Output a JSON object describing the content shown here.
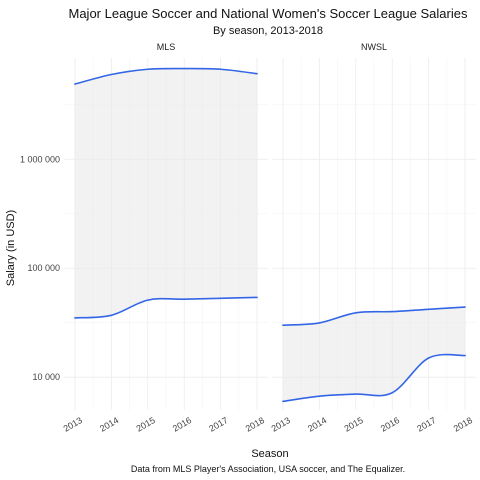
{
  "chart_data": {
    "type": "line",
    "title": "Major League Soccer and National Women's Soccer League Salaries",
    "subtitle": "By season, 2013-2018",
    "caption": "Data from MLS Player's Association, USA soccer, and The Equalizer.",
    "xlabel": "Season",
    "ylabel": "Salary (in USD)",
    "y_scale": "log",
    "ylim": [
      5000,
      8500000
    ],
    "y_ticks": [
      10000,
      100000,
      1000000
    ],
    "y_tick_labels": [
      "10 000",
      "100 000",
      "1 000 000"
    ],
    "x_ticks": [
      "2013",
      "2014",
      "2015",
      "2016",
      "2017",
      "2018"
    ],
    "grid": true,
    "ribbon": "shaded band between the lower and upper line of each panel",
    "line_color": "#3366e6",
    "panels": [
      {
        "name": "MLS",
        "x": [
          2013,
          2014,
          2015,
          2016,
          2017,
          2018
        ],
        "series": [
          {
            "name": "",
            "values": [
              4900000,
              6000000,
              6700000,
              6800000,
              6700000,
              6100000
            ]
          },
          {
            "name": "",
            "values": [
              35000,
              37000,
              51000,
              52000,
              53000,
              54000
            ]
          }
        ]
      },
      {
        "name": "NWSL",
        "x": [
          2013,
          2014,
          2015,
          2016,
          2017,
          2018
        ],
        "series": [
          {
            "name": "",
            "values": [
              30000,
              31500,
              39000,
              40000,
              42000,
              44000
            ]
          },
          {
            "name": "",
            "values": [
              6000,
              6700,
              7000,
              7200,
              15000,
              15800
            ]
          }
        ]
      }
    ]
  }
}
